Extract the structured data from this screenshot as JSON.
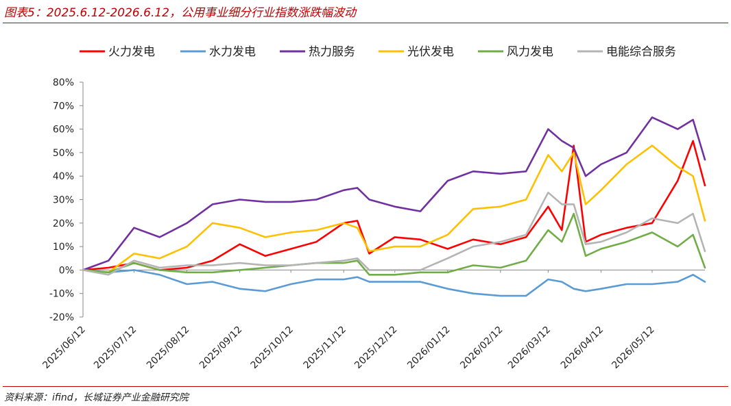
{
  "figure": {
    "title": "图表5：2025.6.12-2026.6.12，公用事业细分行业指数涨跌幅波动",
    "source": "资料来源：ifind，长城证券产业金融研究院"
  },
  "colors": {
    "accent": "#c00000"
  },
  "chart_data": {
    "type": "line",
    "title": "",
    "xlabel": "",
    "ylabel": "",
    "ylim": [
      -20,
      80
    ],
    "yticks": [
      -20,
      -10,
      0,
      10,
      20,
      30,
      40,
      50,
      60,
      70,
      80
    ],
    "ytick_labels": [
      "-20%",
      "-10%",
      "0%",
      "10%",
      "20%",
      "30%",
      "40%",
      "50%",
      "60%",
      "70%",
      "80%"
    ],
    "x_ticks": [
      "2025/06/12",
      "2025/07/12",
      "2025/08/12",
      "2025/09/12",
      "2025/10/12",
      "2025/11/12",
      "2025/12/12",
      "2026/01/12",
      "2026/02/12",
      "2026/03/12",
      "2026/04/12",
      "2026/05/12"
    ],
    "x": [
      "2025/06/12",
      "2025/06/27",
      "2025/07/12",
      "2025/07/27",
      "2025/08/12",
      "2025/08/27",
      "2025/09/12",
      "2025/09/27",
      "2025/10/12",
      "2025/10/27",
      "2025/11/12",
      "2025/11/20",
      "2025/11/27",
      "2025/12/12",
      "2025/12/27",
      "2026/01/12",
      "2026/01/27",
      "2026/02/12",
      "2026/02/27",
      "2026/03/12",
      "2026/03/20",
      "2026/03/27",
      "2026/04/03",
      "2026/04/12",
      "2026/04/27",
      "2026/05/12",
      "2026/05/27",
      "2026/06/05",
      "2026/06/12"
    ],
    "grid": false,
    "legend_position": "top",
    "series": [
      {
        "name": "火力发电",
        "color": "#ff0000",
        "values": [
          0,
          1,
          3,
          0,
          1,
          4,
          11,
          6,
          9,
          12,
          20,
          21,
          7,
          14,
          13,
          9,
          13,
          11,
          14,
          27,
          17,
          53,
          12,
          15,
          18,
          20,
          38,
          55,
          36
        ]
      },
      {
        "name": "水力发电",
        "color": "#5b9bd5",
        "values": [
          0,
          -1,
          0,
          -2,
          -6,
          -5,
          -8,
          -9,
          -6,
          -4,
          -4,
          -3,
          -5,
          -5,
          -5,
          -8,
          -10,
          -11,
          -11,
          -4,
          -5,
          -8,
          -9,
          -8,
          -6,
          -6,
          -5,
          -2,
          -5
        ]
      },
      {
        "name": "热力服务",
        "color": "#7030a0",
        "values": [
          0,
          4,
          18,
          14,
          20,
          28,
          30,
          29,
          29,
          30,
          34,
          35,
          30,
          27,
          25,
          38,
          42,
          41,
          42,
          60,
          55,
          52,
          40,
          45,
          50,
          65,
          60,
          64,
          47
        ]
      },
      {
        "name": "光伏发电",
        "color": "#ffc000",
        "values": [
          0,
          -1,
          7,
          5,
          10,
          20,
          18,
          14,
          16,
          17,
          20,
          18,
          8,
          10,
          10,
          15,
          26,
          27,
          30,
          49,
          42,
          50,
          28,
          34,
          45,
          53,
          44,
          40,
          21
        ]
      },
      {
        "name": "风力发电",
        "color": "#70ad47",
        "values": [
          0,
          -1,
          3,
          0,
          -1,
          -1,
          0,
          1,
          2,
          3,
          3,
          4,
          -2,
          -2,
          -1,
          -1,
          2,
          1,
          4,
          17,
          12,
          24,
          6,
          9,
          12,
          16,
          10,
          15,
          1
        ]
      },
      {
        "name": "电能综合服务",
        "color": "#b4b4b4",
        "values": [
          0,
          -2,
          4,
          1,
          2,
          2,
          3,
          2,
          2,
          3,
          4,
          5,
          0,
          0,
          0,
          5,
          10,
          12,
          15,
          33,
          28,
          28,
          11,
          12,
          16,
          22,
          20,
          24,
          8
        ]
      }
    ]
  }
}
